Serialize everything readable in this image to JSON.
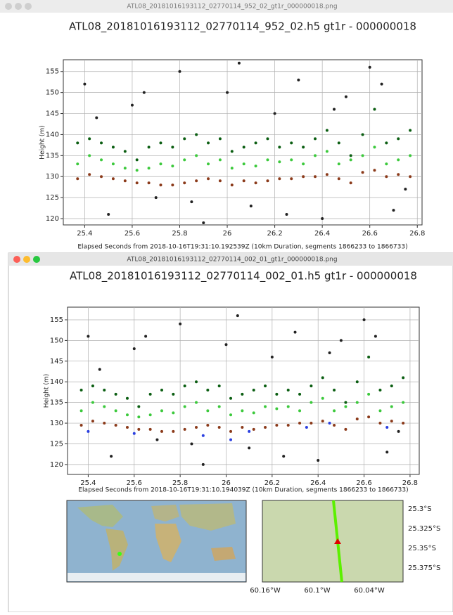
{
  "windows": [
    {
      "file": "ATL08_20181016193112_02770114_952_02_gt1r_000000018.png",
      "chart": {
        "type": "scatter",
        "title": "ATL08_20181016193112_02770114_952_02.h5 gt1r - 000000018",
        "xlabel": "Elapsed Seconds from 2018-10-16T19:31:10.192539Z (10km Duration, segments 1866233 to 1866733)",
        "ylabel": "Height (m)",
        "xlim": [
          25.31,
          26.82
        ],
        "ylim": [
          118.5,
          157.8
        ],
        "xticks": [
          25.4,
          25.6,
          25.8,
          26.0,
          26.2,
          26.4,
          26.6,
          26.8
        ],
        "yticks": [
          120,
          125,
          130,
          135,
          140,
          145,
          150,
          155
        ],
        "grid": true,
        "series": [
          {
            "color": "#222222",
            "x": [
              25.4,
              25.5,
              25.6,
              25.7,
              25.8,
              25.9,
              26.0,
              26.1,
              26.2,
              26.3,
              26.4,
              26.5,
              26.6,
              26.7,
              25.45,
              25.65,
              25.85,
              26.05,
              26.25,
              26.45,
              26.65,
              26.75
            ],
            "values": [
              152,
              121,
              147,
              125,
              155,
              119,
              150,
              123,
              145,
              153,
              120,
              149,
              156,
              122,
              144,
              150,
              124,
              157,
              121,
              146,
              152,
              127
            ]
          },
          {
            "color": "#3cc93c",
            "x": [
              25.37,
              25.42,
              25.47,
              25.52,
              25.57,
              25.62,
              25.67,
              25.72,
              25.77,
              25.82,
              25.87,
              25.92,
              25.97,
              26.02,
              26.07,
              26.12,
              26.17,
              26.22,
              26.27,
              26.32,
              26.37,
              26.42,
              26.47,
              26.52,
              26.57,
              26.62,
              26.67,
              26.72,
              26.77
            ],
            "values": [
              133,
              135,
              134,
              133,
              132,
              131.5,
              132,
              133,
              132.5,
              134,
              135,
              133,
              134,
              132,
              133,
              132.5,
              134,
              133.5,
              134,
              133,
              135,
              136,
              133,
              134,
              135,
              137,
              133,
              134,
              135
            ]
          },
          {
            "color": "#0b5e12",
            "x": [
              25.37,
              25.42,
              25.47,
              25.52,
              25.57,
              25.62,
              25.67,
              25.72,
              25.77,
              25.82,
              25.87,
              25.92,
              25.97,
              26.02,
              26.07,
              26.12,
              26.17,
              26.22,
              26.27,
              26.32,
              26.37,
              26.42,
              26.47,
              26.52,
              26.57,
              26.62,
              26.67,
              26.72,
              26.77
            ],
            "values": [
              138,
              139,
              138,
              137,
              136,
              134,
              137,
              138,
              137,
              139,
              140,
              138,
              139,
              136,
              137,
              138,
              139,
              137,
              138,
              137,
              139,
              141,
              138,
              135,
              140,
              146,
              138,
              139,
              141
            ]
          },
          {
            "color": "#8b3a1a",
            "x": [
              25.37,
              25.42,
              25.47,
              25.52,
              25.57,
              25.62,
              25.67,
              25.72,
              25.77,
              25.82,
              25.87,
              25.92,
              25.97,
              26.02,
              26.07,
              26.12,
              26.17,
              26.22,
              26.27,
              26.32,
              26.37,
              26.42,
              26.47,
              26.52,
              26.57,
              26.62,
              26.67,
              26.72,
              26.77
            ],
            "values": [
              129.5,
              130.5,
              130,
              129.5,
              129,
              128.5,
              128.5,
              128,
              128,
              128.5,
              129,
              129.5,
              129,
              128,
              129,
              128.5,
              129,
              129.5,
              129.5,
              130,
              130,
              130.5,
              129.5,
              128.5,
              131,
              131.5,
              130,
              130.5,
              130
            ]
          }
        ]
      }
    },
    {
      "file": "ATL08_20181016193112_02770114_002_01_gt1r_000000018.png",
      "chart": {
        "type": "scatter",
        "title": "ATL08_20181016193112_02770114_002_01.h5 gt1r - 000000018",
        "xlabel": "Elapsed Seconds from 2018-10-16T19:31:10.194039Z (10km Duration, segments 1866233 to 1866733)",
        "ylabel": "Height (m)",
        "xlim": [
          25.31,
          26.84
        ],
        "ylim": [
          117.6,
          158.06
        ],
        "xticks": [
          25.4,
          25.6,
          25.8,
          26.0,
          26.2,
          26.4,
          26.6,
          26.8
        ],
        "yticks": [
          120,
          125,
          130,
          135,
          140,
          145,
          150,
          155
        ],
        "grid": true,
        "series": [
          {
            "color": "#222222",
            "x": [
              25.4,
              25.5,
              25.6,
              25.7,
              25.8,
              25.9,
              26.0,
              26.1,
              26.2,
              26.3,
              26.4,
              26.5,
              26.6,
              26.7,
              25.45,
              25.65,
              25.85,
              26.05,
              26.25,
              26.45,
              26.65,
              26.75
            ],
            "values": [
              151,
              122,
              148,
              126,
              154,
              120,
              149,
              124,
              146,
              152,
              121,
              150,
              155,
              123,
              143,
              151,
              125,
              156,
              122,
              147,
              151,
              128
            ]
          },
          {
            "color": "#3cc93c",
            "x": [
              25.37,
              25.42,
              25.47,
              25.52,
              25.57,
              25.62,
              25.67,
              25.72,
              25.77,
              25.82,
              25.87,
              25.92,
              25.97,
              26.02,
              26.07,
              26.12,
              26.17,
              26.22,
              26.27,
              26.32,
              26.37,
              26.42,
              26.47,
              26.52,
              26.57,
              26.62,
              26.67,
              26.72,
              26.77
            ],
            "values": [
              133,
              135,
              134,
              133,
              132,
              131.5,
              132,
              133,
              132.5,
              134,
              135,
              133,
              134,
              132,
              133,
              132.5,
              134,
              133.5,
              134,
              133,
              135,
              136,
              133,
              134,
              135,
              137,
              133,
              134,
              135
            ]
          },
          {
            "color": "#0b5e12",
            "x": [
              25.37,
              25.42,
              25.47,
              25.52,
              25.57,
              25.62,
              25.67,
              25.72,
              25.77,
              25.82,
              25.87,
              25.92,
              25.97,
              26.02,
              26.07,
              26.12,
              26.17,
              26.22,
              26.27,
              26.32,
              26.37,
              26.42,
              26.47,
              26.52,
              26.57,
              26.62,
              26.67,
              26.72,
              26.77
            ],
            "values": [
              138,
              139,
              138,
              137,
              136,
              134,
              137,
              138,
              137,
              139,
              140,
              138,
              139,
              136,
              137,
              138,
              139,
              137,
              138,
              137,
              139,
              141,
              138,
              135,
              140,
              146,
              138,
              139,
              141
            ]
          },
          {
            "color": "#8b3a1a",
            "x": [
              25.37,
              25.42,
              25.47,
              25.52,
              25.57,
              25.62,
              25.67,
              25.72,
              25.77,
              25.82,
              25.87,
              25.92,
              25.97,
              26.02,
              26.07,
              26.12,
              26.17,
              26.22,
              26.27,
              26.32,
              26.37,
              26.42,
              26.47,
              26.52,
              26.57,
              26.62,
              26.67,
              26.72,
              26.77
            ],
            "values": [
              129.5,
              130.5,
              130,
              129.5,
              129,
              128.5,
              128.5,
              128,
              128,
              128.5,
              129,
              129.5,
              129,
              128,
              129,
              128.5,
              129,
              129.5,
              129.5,
              130,
              130,
              130.5,
              129.5,
              128.5,
              131,
              131.5,
              130,
              130.5,
              130
            ]
          },
          {
            "color": "#2a3fe0",
            "x": [
              25.4,
              25.6,
              25.9,
              26.02,
              26.1,
              26.35,
              26.45,
              26.7
            ],
            "values": [
              128,
              127.5,
              127,
              126,
              128,
              129,
              130,
              129
            ]
          }
        ]
      }
    }
  ],
  "map": {
    "lat_labels": [
      "25.3°S",
      "25.325°S",
      "25.35°S",
      "25.375°S"
    ],
    "lon_labels": [
      "60.16°W",
      "60.1°W",
      "60.04°W"
    ]
  }
}
